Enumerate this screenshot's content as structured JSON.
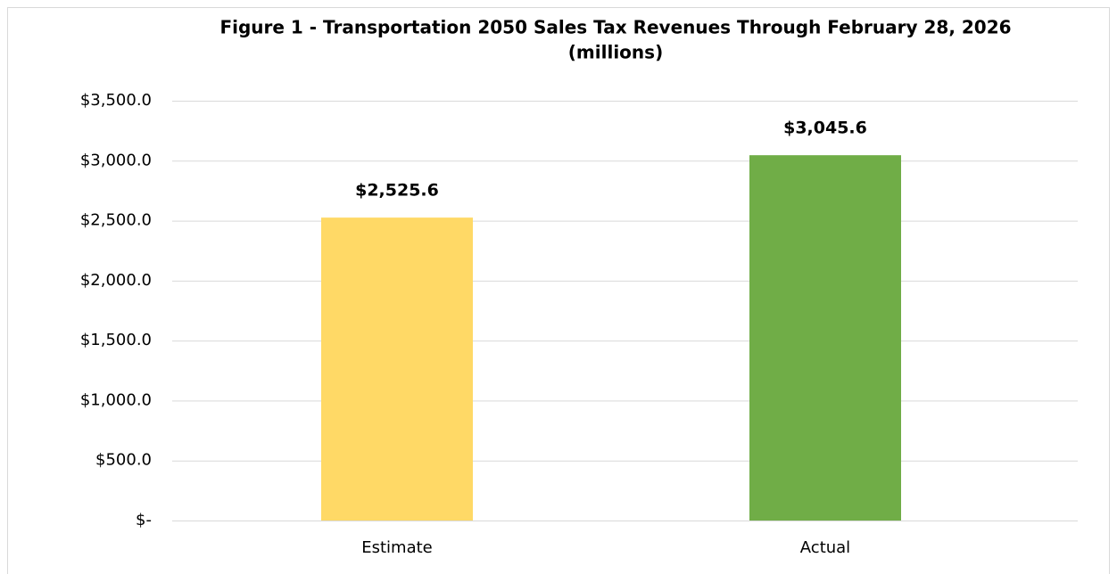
{
  "chart_data": {
    "type": "bar",
    "title": "Figure 1 - Transportation 2050 Sales Tax Revenues Through February 28, 2026",
    "subtitle": "(millions)",
    "categories": [
      "Estimate",
      "Actual"
    ],
    "values": [
      2525.6,
      3045.6
    ],
    "value_labels": [
      "$2,525.6",
      "$3,045.6"
    ],
    "colors": [
      "#ffd966",
      "#70ad47"
    ],
    "ylim": [
      0,
      3500
    ],
    "yticks": [
      {
        "value": 0,
        "label": "$-"
      },
      {
        "value": 500,
        "label": "$500.0"
      },
      {
        "value": 1000,
        "label": "$1,000.0"
      },
      {
        "value": 1500,
        "label": "$1,500.0"
      },
      {
        "value": 2000,
        "label": "$2,000.0"
      },
      {
        "value": 2500,
        "label": "$2,500.0"
      },
      {
        "value": 3000,
        "label": "$3,000.0"
      },
      {
        "value": 3500,
        "label": "$3,500.0"
      }
    ],
    "grid": true
  }
}
